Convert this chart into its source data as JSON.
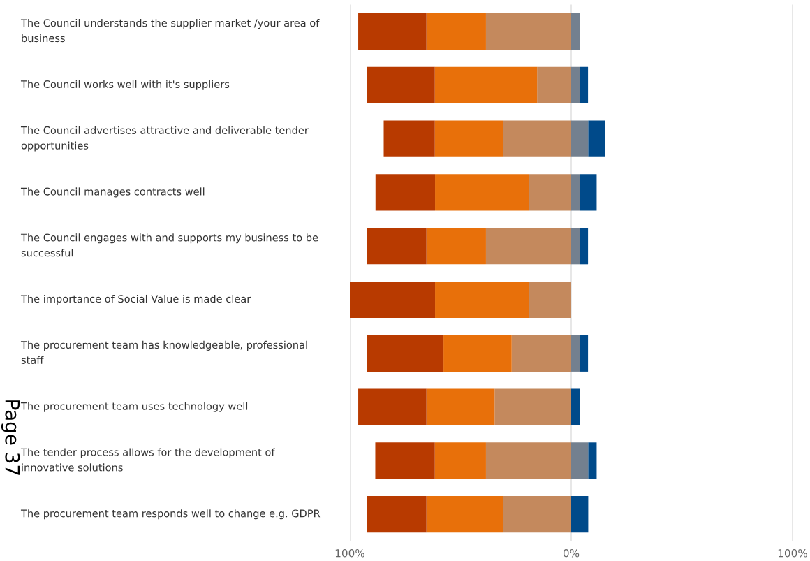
{
  "chart_data": {
    "type": "bar",
    "orientation": "horizontal",
    "stacked": true,
    "categories": [
      "The Council understands the supplier market /your area of business",
      "The Council works well with it's suppliers",
      "The Council advertises attractive and deliverable tender opportunities",
      "The Council manages contracts well",
      "The Council engages with and supports my business to be successful",
      "The importance of Social Value is made clear",
      "The procurement team has knowledgeable, professional staff",
      "The procurement team uses technology well",
      "The tender process allows for the development of innovative solutions",
      "The procurement team responds well to change e.g. GDPR"
    ],
    "series": [
      {
        "color": "#c4895d",
        "values": [
          -38.5,
          -15.4,
          -30.8,
          -19.2,
          -38.5,
          -19.2,
          -26.9,
          -34.6,
          -38.5,
          -30.8
        ]
      },
      {
        "color": "#e8700a",
        "values": [
          -26.9,
          -46.2,
          -30.8,
          -42.3,
          -26.9,
          -42.3,
          -30.8,
          -30.8,
          -23.1,
          -34.6
        ]
      },
      {
        "color": "#b83a00",
        "values": [
          -30.8,
          -30.8,
          -23.1,
          -26.9,
          -26.9,
          -38.5,
          -34.6,
          -30.8,
          -26.9,
          -26.9
        ]
      },
      {
        "color": "#73808f",
        "values": [
          3.8,
          3.8,
          7.7,
          3.8,
          3.8,
          0,
          3.8,
          0,
          7.7,
          0
        ]
      },
      {
        "color": "#004a8a",
        "values": [
          0,
          3.8,
          7.7,
          7.7,
          3.8,
          0,
          3.8,
          3.8,
          3.8,
          7.7
        ]
      }
    ],
    "xlim": [
      -100,
      100
    ],
    "xticks": [
      {
        "value": -100,
        "label": "100%"
      },
      {
        "value": 0,
        "label": "0%"
      },
      {
        "value": 100,
        "label": "100%"
      }
    ],
    "grid": "x",
    "annotations": [
      "Page 37"
    ]
  }
}
